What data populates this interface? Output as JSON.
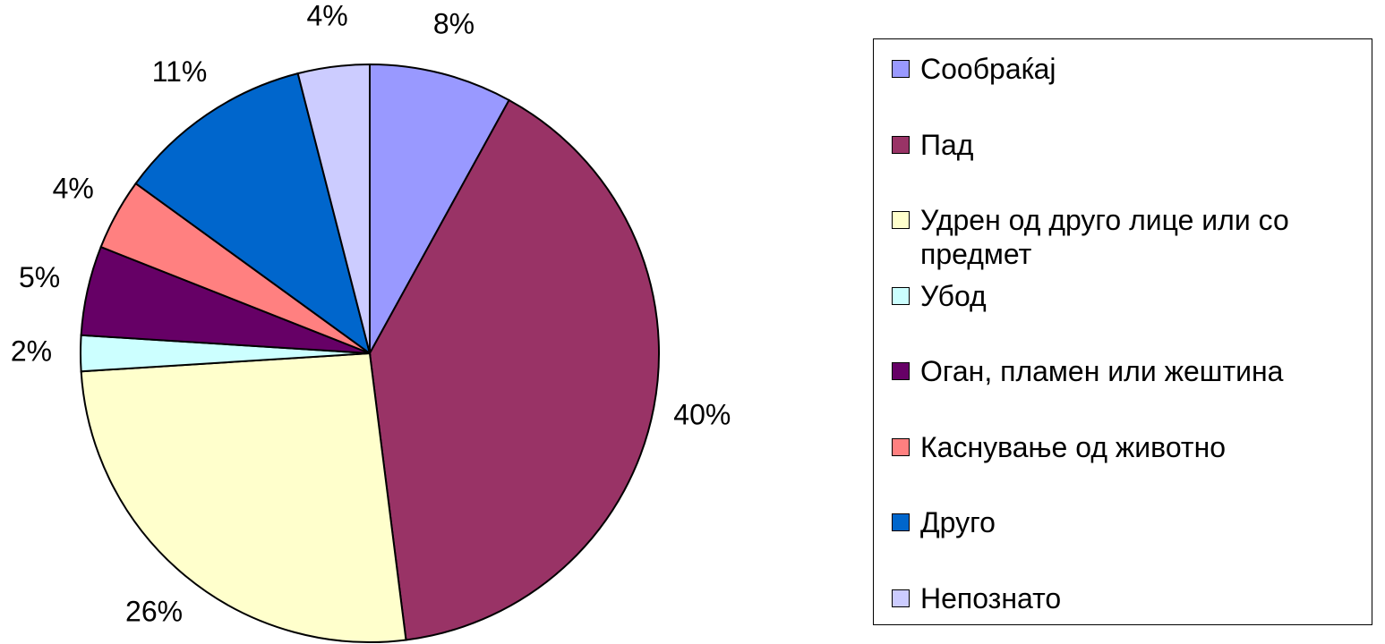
{
  "chart_data": {
    "type": "pie",
    "categories": [
      "Сообраќај",
      "Пад",
      "Удрен од друго лице или со предмет",
      "Убод",
      "Оган, пламен или жештина",
      "Каснување од животно",
      "Друго",
      "Непознато"
    ],
    "values": [
      8,
      40,
      26,
      2,
      5,
      4,
      11,
      4
    ],
    "value_labels": [
      "8%",
      "40%",
      "26%",
      "2%",
      "5%",
      "4%",
      "11%",
      "4%"
    ],
    "colors": [
      "#9999ff",
      "#993366",
      "#ffffcc",
      "#ccffff",
      "#660066",
      "#ff8080",
      "#0066cc",
      "#ccccff"
    ],
    "legend": "right"
  }
}
